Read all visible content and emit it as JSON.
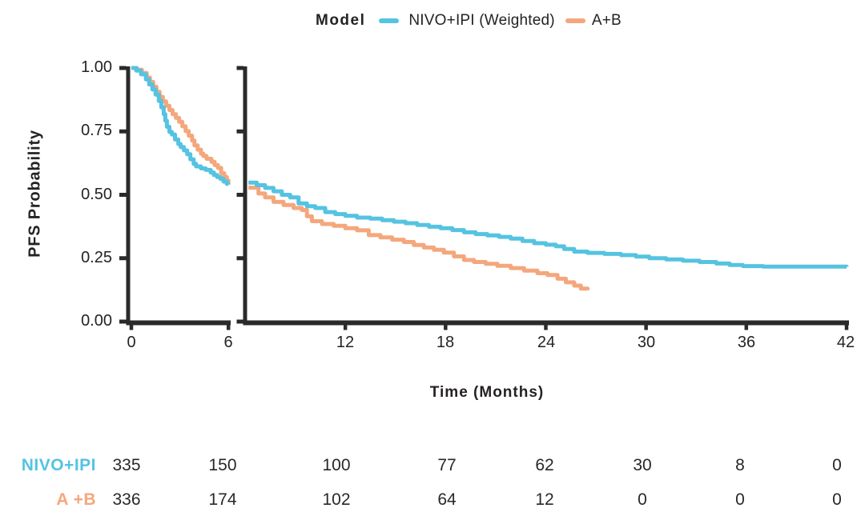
{
  "figure": {
    "legend_title": "Model",
    "x_axis_label": "Time (Months)",
    "y_axis_label": "PFS Probability"
  },
  "chart_data": {
    "type": "line",
    "style": "kaplan-meier step curves with broken x-axis (break between 6 and 7 months)",
    "title": "",
    "xlabel": "Time (Months)",
    "ylabel": "PFS Probability",
    "ylim": [
      0.0,
      1.0
    ],
    "y_ticks": [
      "1.00",
      "0.75",
      "0.50",
      "0.25",
      "0.00"
    ],
    "y_tick_values": [
      1.0,
      0.75,
      0.5,
      0.25,
      0.0
    ],
    "x_ticks": [
      "0",
      "6",
      "12",
      "18",
      "24",
      "30",
      "36",
      "42"
    ],
    "x_tick_values": [
      0,
      6,
      12,
      18,
      24,
      30,
      36,
      42
    ],
    "legend_position": "top-center",
    "grid": false,
    "axis_color": "#2B2A29",
    "series": [
      {
        "name": "NIVO+IPI (Weighted)",
        "color": "#55C3E1",
        "segment_left": [
          [
            0,
            1.0
          ],
          [
            0.3,
            0.99
          ],
          [
            0.6,
            0.975
          ],
          [
            0.9,
            0.955
          ],
          [
            1.1,
            0.935
          ],
          [
            1.3,
            0.915
          ],
          [
            1.5,
            0.895
          ],
          [
            1.7,
            0.87
          ],
          [
            1.85,
            0.845
          ],
          [
            2.0,
            0.818
          ],
          [
            2.1,
            0.792
          ],
          [
            2.2,
            0.768
          ],
          [
            2.35,
            0.748
          ],
          [
            2.5,
            0.738
          ],
          [
            2.7,
            0.718
          ],
          [
            2.9,
            0.7
          ],
          [
            3.05,
            0.688
          ],
          [
            3.25,
            0.675
          ],
          [
            3.45,
            0.66
          ],
          [
            3.65,
            0.64
          ],
          [
            3.85,
            0.622
          ],
          [
            4.0,
            0.612
          ],
          [
            4.3,
            0.604
          ],
          [
            4.6,
            0.598
          ],
          [
            4.9,
            0.588
          ],
          [
            5.1,
            0.578
          ],
          [
            5.3,
            0.57
          ],
          [
            5.5,
            0.563
          ],
          [
            5.7,
            0.552
          ],
          [
            5.9,
            0.543
          ],
          [
            6.0,
            0.54
          ]
        ],
        "segment_right": [
          [
            6.2,
            0.548
          ],
          [
            6.7,
            0.538
          ],
          [
            7.2,
            0.527
          ],
          [
            7.7,
            0.514
          ],
          [
            8.2,
            0.5
          ],
          [
            8.7,
            0.49
          ],
          [
            9.2,
            0.466
          ],
          [
            9.7,
            0.455
          ],
          [
            10.2,
            0.448
          ],
          [
            10.8,
            0.432
          ],
          [
            11.4,
            0.424
          ],
          [
            12.0,
            0.417
          ],
          [
            12.7,
            0.41
          ],
          [
            13.5,
            0.406
          ],
          [
            14.2,
            0.4
          ],
          [
            14.9,
            0.394
          ],
          [
            15.6,
            0.388
          ],
          [
            16.3,
            0.381
          ],
          [
            17.0,
            0.374
          ],
          [
            17.7,
            0.368
          ],
          [
            18.4,
            0.361
          ],
          [
            19.1,
            0.352
          ],
          [
            19.8,
            0.345
          ],
          [
            20.5,
            0.34
          ],
          [
            21.2,
            0.334
          ],
          [
            21.9,
            0.327
          ],
          [
            22.6,
            0.318
          ],
          [
            23.3,
            0.309
          ],
          [
            24.0,
            0.303
          ],
          [
            24.6,
            0.297
          ],
          [
            25.1,
            0.286
          ],
          [
            25.7,
            0.276
          ],
          [
            26.5,
            0.271
          ],
          [
            27.5,
            0.267
          ],
          [
            28.5,
            0.262
          ],
          [
            29.4,
            0.256
          ],
          [
            30.2,
            0.25
          ],
          [
            31.2,
            0.245
          ],
          [
            32.2,
            0.24
          ],
          [
            33.2,
            0.235
          ],
          [
            34.2,
            0.229
          ],
          [
            35.0,
            0.223
          ],
          [
            35.8,
            0.219
          ],
          [
            37.0,
            0.217
          ],
          [
            42.0,
            0.216
          ]
        ]
      },
      {
        "name": "A+B",
        "color": "#F4A77C",
        "segment_left": [
          [
            0,
            1.0
          ],
          [
            0.35,
            0.993
          ],
          [
            0.65,
            0.98
          ],
          [
            0.95,
            0.962
          ],
          [
            1.15,
            0.945
          ],
          [
            1.35,
            0.926
          ],
          [
            1.55,
            0.906
          ],
          [
            1.75,
            0.886
          ],
          [
            1.95,
            0.868
          ],
          [
            2.15,
            0.851
          ],
          [
            2.35,
            0.834
          ],
          [
            2.55,
            0.818
          ],
          [
            2.75,
            0.803
          ],
          [
            2.95,
            0.788
          ],
          [
            3.15,
            0.77
          ],
          [
            3.35,
            0.751
          ],
          [
            3.55,
            0.733
          ],
          [
            3.75,
            0.714
          ],
          [
            3.9,
            0.695
          ],
          [
            4.1,
            0.678
          ],
          [
            4.3,
            0.662
          ],
          [
            4.45,
            0.653
          ],
          [
            4.65,
            0.642
          ],
          [
            4.95,
            0.63
          ],
          [
            5.15,
            0.617
          ],
          [
            5.35,
            0.606
          ],
          [
            5.55,
            0.585
          ],
          [
            5.75,
            0.57
          ],
          [
            5.9,
            0.556
          ],
          [
            6.0,
            0.548
          ]
        ],
        "segment_right": [
          [
            6.2,
            0.528
          ],
          [
            6.8,
            0.505
          ],
          [
            7.2,
            0.49
          ],
          [
            7.7,
            0.472
          ],
          [
            8.3,
            0.46
          ],
          [
            8.9,
            0.448
          ],
          [
            9.4,
            0.44
          ],
          [
            9.7,
            0.415
          ],
          [
            10.0,
            0.396
          ],
          [
            10.6,
            0.385
          ],
          [
            11.3,
            0.378
          ],
          [
            12.0,
            0.368
          ],
          [
            12.7,
            0.36
          ],
          [
            13.4,
            0.341
          ],
          [
            14.1,
            0.332
          ],
          [
            14.8,
            0.323
          ],
          [
            15.5,
            0.314
          ],
          [
            16.1,
            0.302
          ],
          [
            16.7,
            0.292
          ],
          [
            17.3,
            0.283
          ],
          [
            17.9,
            0.272
          ],
          [
            18.5,
            0.257
          ],
          [
            19.1,
            0.243
          ],
          [
            19.7,
            0.235
          ],
          [
            20.4,
            0.228
          ],
          [
            21.1,
            0.22
          ],
          [
            21.9,
            0.211
          ],
          [
            22.7,
            0.201
          ],
          [
            23.5,
            0.191
          ],
          [
            24.1,
            0.184
          ],
          [
            24.7,
            0.169
          ],
          [
            25.2,
            0.155
          ],
          [
            25.7,
            0.142
          ],
          [
            26.1,
            0.13
          ],
          [
            26.5,
            0.124
          ]
        ]
      }
    ]
  },
  "risk_table": {
    "times": [
      0,
      6,
      12,
      18,
      24,
      30,
      36,
      42
    ],
    "rows": [
      {
        "label": "NIVO+IPI",
        "color": "#55C3E1",
        "values": [
          "335",
          "150",
          "100",
          "77",
          "62",
          "30",
          "8",
          "0"
        ]
      },
      {
        "label": "A +B",
        "color": "#F4A77C",
        "values": [
          "336",
          "174",
          "102",
          "64",
          "12",
          "0",
          "0",
          "0"
        ]
      }
    ]
  }
}
